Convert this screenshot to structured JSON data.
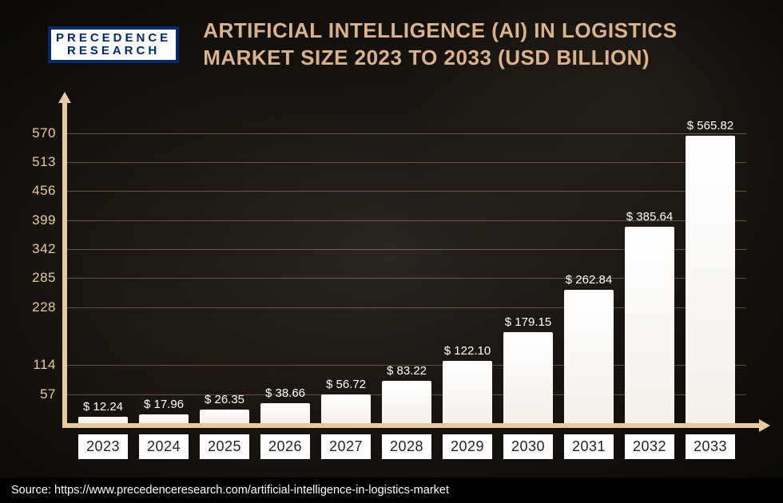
{
  "logo": {
    "line1": "PRECEDENCE",
    "line2": "RESEARCH"
  },
  "title": "ARTIFICIAL INTELLIGENCE (AI) IN LOGISTICS MARKET SIZE 2023 TO 2033 (USD BILLION)",
  "chart": {
    "type": "bar",
    "categories": [
      "2023",
      "2024",
      "2025",
      "2026",
      "2027",
      "2028",
      "2029",
      "2030",
      "2031",
      "2032",
      "2033"
    ],
    "values": [
      12.24,
      17.96,
      26.35,
      38.66,
      56.72,
      83.22,
      122.1,
      179.15,
      262.84,
      385.64,
      565.82
    ],
    "value_labels": [
      "$ 12.24",
      "$ 17.96",
      "$ 26.35",
      "$ 38.66",
      "$ 56.72",
      "$ 83.22",
      "$ 122.10",
      "$ 179.15",
      "$ 262.84",
      "$ 385.64",
      "$ 565.82"
    ],
    "y_ticks": [
      57,
      114,
      228,
      285,
      342,
      399,
      456,
      513,
      570
    ],
    "y_max": 620,
    "bar_color": "#ffffff",
    "axis_color": "#e8c9a0",
    "grid_color": "rgba(232,201,160,0.35)",
    "title_color": "#d9b38c",
    "label_color": "#ffffff",
    "tick_fontsize": 17,
    "label_fontsize": 15,
    "category_fontsize": 18,
    "background": "dark-gradient"
  },
  "source": "Source: https://www.precedenceresearch.com/artificial-intelligence-in-logistics-market"
}
